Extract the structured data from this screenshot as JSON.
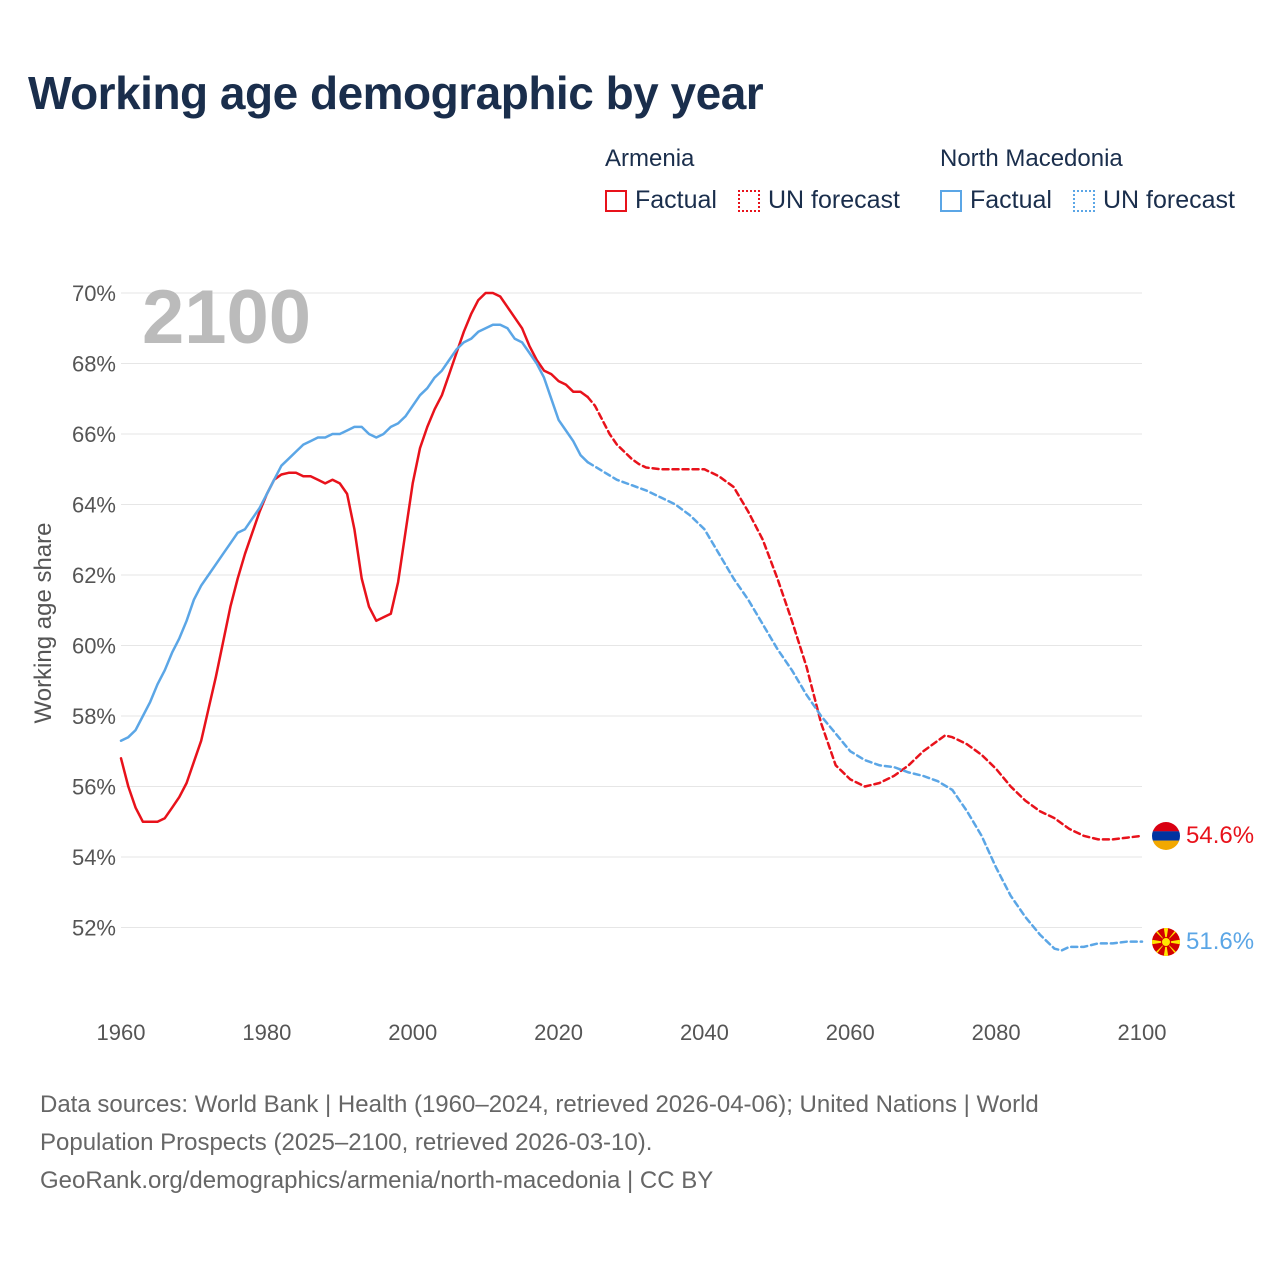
{
  "title": "Working age demographic by year",
  "legend": {
    "groups": [
      {
        "country": "Armenia",
        "factual_label": "Factual",
        "forecast_label": "UN forecast",
        "color": "#e8121b"
      },
      {
        "country": "North Macedonia",
        "factual_label": "Factual",
        "forecast_label": "UN forecast",
        "color": "#5ba6e6"
      }
    ]
  },
  "year_display": "2100",
  "footer": {
    "line1": "Data sources: World Bank | Health (1960–2024, retrieved 2026-04-06); United Nations | World",
    "line2": "Population Prospects (2025–2100, retrieved 2026-03-10).",
    "line3": "GeoRank.org/demographics/armenia/north-macedonia | CC BY"
  },
  "chart_data": {
    "type": "line",
    "title": "Working age demographic by year",
    "xlabel": "",
    "ylabel": "Working age share",
    "xlim": [
      1960,
      2100
    ],
    "ylim": [
      50,
      70
    ],
    "x_ticks": [
      1960,
      1980,
      2000,
      2020,
      2040,
      2060,
      2080,
      2100
    ],
    "y_ticks": [
      {
        "value": 52,
        "label": "52%"
      },
      {
        "value": 54,
        "label": "54%"
      },
      {
        "value": 56,
        "label": "56%"
      },
      {
        "value": 58,
        "label": "58%"
      },
      {
        "value": 60,
        "label": "60%"
      },
      {
        "value": 62,
        "label": "62%"
      },
      {
        "value": 64,
        "label": "64%"
      },
      {
        "value": 66,
        "label": "66%"
      },
      {
        "value": 68,
        "label": "68%"
      },
      {
        "value": 70,
        "label": "70%"
      }
    ],
    "grid": true,
    "factual_end_year": 2024,
    "series": [
      {
        "name": "Armenia",
        "color": "#e8121b",
        "end_label": "54.6%",
        "flag": "armenia-flag",
        "points": [
          [
            1960,
            56.8
          ],
          [
            1961,
            56.0
          ],
          [
            1962,
            55.4
          ],
          [
            1963,
            55.0
          ],
          [
            1964,
            55.0
          ],
          [
            1965,
            55.0
          ],
          [
            1966,
            55.1
          ],
          [
            1967,
            55.4
          ],
          [
            1968,
            55.7
          ],
          [
            1969,
            56.1
          ],
          [
            1970,
            56.7
          ],
          [
            1971,
            57.3
          ],
          [
            1972,
            58.2
          ],
          [
            1973,
            59.1
          ],
          [
            1974,
            60.1
          ],
          [
            1975,
            61.1
          ],
          [
            1976,
            61.9
          ],
          [
            1977,
            62.6
          ],
          [
            1978,
            63.2
          ],
          [
            1979,
            63.8
          ],
          [
            1980,
            64.3
          ],
          [
            1981,
            64.7
          ],
          [
            1982,
            64.85
          ],
          [
            1983,
            64.9
          ],
          [
            1984,
            64.9
          ],
          [
            1985,
            64.8
          ],
          [
            1986,
            64.8
          ],
          [
            1987,
            64.7
          ],
          [
            1988,
            64.6
          ],
          [
            1989,
            64.7
          ],
          [
            1990,
            64.6
          ],
          [
            1991,
            64.3
          ],
          [
            1992,
            63.3
          ],
          [
            1993,
            61.9
          ],
          [
            1994,
            61.1
          ],
          [
            1995,
            60.7
          ],
          [
            1996,
            60.8
          ],
          [
            1997,
            60.9
          ],
          [
            1998,
            61.8
          ],
          [
            1999,
            63.2
          ],
          [
            2000,
            64.6
          ],
          [
            2001,
            65.6
          ],
          [
            2002,
            66.2
          ],
          [
            2003,
            66.7
          ],
          [
            2004,
            67.1
          ],
          [
            2005,
            67.7
          ],
          [
            2006,
            68.3
          ],
          [
            2007,
            68.9
          ],
          [
            2008,
            69.4
          ],
          [
            2009,
            69.8
          ],
          [
            2010,
            70.0
          ],
          [
            2011,
            70.0
          ],
          [
            2012,
            69.9
          ],
          [
            2013,
            69.6
          ],
          [
            2014,
            69.3
          ],
          [
            2015,
            69.0
          ],
          [
            2016,
            68.5
          ],
          [
            2017,
            68.1
          ],
          [
            2018,
            67.8
          ],
          [
            2019,
            67.7
          ],
          [
            2020,
            67.5
          ],
          [
            2021,
            67.4
          ],
          [
            2022,
            67.2
          ],
          [
            2023,
            67.2
          ],
          [
            2024,
            67.05
          ],
          [
            2025,
            66.8
          ],
          [
            2026,
            66.4
          ],
          [
            2027,
            66.0
          ],
          [
            2028,
            65.7
          ],
          [
            2029,
            65.5
          ],
          [
            2030,
            65.3
          ],
          [
            2031,
            65.15
          ],
          [
            2032,
            65.05
          ],
          [
            2034,
            65.0
          ],
          [
            2036,
            65.0
          ],
          [
            2038,
            65.0
          ],
          [
            2040,
            65.0
          ],
          [
            2042,
            64.8
          ],
          [
            2044,
            64.5
          ],
          [
            2046,
            63.8
          ],
          [
            2048,
            63.0
          ],
          [
            2050,
            61.9
          ],
          [
            2052,
            60.7
          ],
          [
            2054,
            59.4
          ],
          [
            2056,
            57.8
          ],
          [
            2058,
            56.6
          ],
          [
            2060,
            56.2
          ],
          [
            2062,
            56.0
          ],
          [
            2064,
            56.1
          ],
          [
            2066,
            56.3
          ],
          [
            2068,
            56.6
          ],
          [
            2070,
            57.0
          ],
          [
            2072,
            57.3
          ],
          [
            2073,
            57.45
          ],
          [
            2074,
            57.4
          ],
          [
            2076,
            57.2
          ],
          [
            2078,
            56.9
          ],
          [
            2080,
            56.5
          ],
          [
            2082,
            56.0
          ],
          [
            2084,
            55.6
          ],
          [
            2086,
            55.3
          ],
          [
            2088,
            55.1
          ],
          [
            2090,
            54.8
          ],
          [
            2092,
            54.6
          ],
          [
            2094,
            54.5
          ],
          [
            2096,
            54.5
          ],
          [
            2098,
            54.55
          ],
          [
            2100,
            54.6
          ]
        ]
      },
      {
        "name": "North Macedonia",
        "color": "#5ba6e6",
        "end_label": "51.6%",
        "flag": "north-macedonia-flag",
        "points": [
          [
            1960,
            57.3
          ],
          [
            1961,
            57.4
          ],
          [
            1962,
            57.6
          ],
          [
            1963,
            58.0
          ],
          [
            1964,
            58.4
          ],
          [
            1965,
            58.9
          ],
          [
            1966,
            59.3
          ],
          [
            1967,
            59.8
          ],
          [
            1968,
            60.2
          ],
          [
            1969,
            60.7
          ],
          [
            1970,
            61.3
          ],
          [
            1971,
            61.7
          ],
          [
            1972,
            62.0
          ],
          [
            1973,
            62.3
          ],
          [
            1974,
            62.6
          ],
          [
            1975,
            62.9
          ],
          [
            1976,
            63.2
          ],
          [
            1977,
            63.3
          ],
          [
            1978,
            63.6
          ],
          [
            1979,
            63.9
          ],
          [
            1980,
            64.3
          ],
          [
            1981,
            64.7
          ],
          [
            1982,
            65.1
          ],
          [
            1983,
            65.3
          ],
          [
            1984,
            65.5
          ],
          [
            1985,
            65.7
          ],
          [
            1986,
            65.8
          ],
          [
            1987,
            65.9
          ],
          [
            1988,
            65.9
          ],
          [
            1989,
            66.0
          ],
          [
            1990,
            66.0
          ],
          [
            1991,
            66.1
          ],
          [
            1992,
            66.2
          ],
          [
            1993,
            66.2
          ],
          [
            1994,
            66.0
          ],
          [
            1995,
            65.9
          ],
          [
            1996,
            66.0
          ],
          [
            1997,
            66.2
          ],
          [
            1998,
            66.3
          ],
          [
            1999,
            66.5
          ],
          [
            2000,
            66.8
          ],
          [
            2001,
            67.1
          ],
          [
            2002,
            67.3
          ],
          [
            2003,
            67.6
          ],
          [
            2004,
            67.8
          ],
          [
            2005,
            68.1
          ],
          [
            2006,
            68.4
          ],
          [
            2007,
            68.6
          ],
          [
            2008,
            68.7
          ],
          [
            2009,
            68.9
          ],
          [
            2010,
            69.0
          ],
          [
            2011,
            69.1
          ],
          [
            2012,
            69.1
          ],
          [
            2013,
            69.0
          ],
          [
            2014,
            68.7
          ],
          [
            2015,
            68.6
          ],
          [
            2016,
            68.3
          ],
          [
            2017,
            68.0
          ],
          [
            2018,
            67.6
          ],
          [
            2019,
            67.0
          ],
          [
            2020,
            66.4
          ],
          [
            2021,
            66.1
          ],
          [
            2022,
            65.8
          ],
          [
            2023,
            65.4
          ],
          [
            2024,
            65.2
          ],
          [
            2026,
            64.95
          ],
          [
            2028,
            64.7
          ],
          [
            2030,
            64.55
          ],
          [
            2032,
            64.4
          ],
          [
            2034,
            64.2
          ],
          [
            2036,
            64.0
          ],
          [
            2038,
            63.7
          ],
          [
            2040,
            63.3
          ],
          [
            2042,
            62.6
          ],
          [
            2044,
            61.9
          ],
          [
            2046,
            61.3
          ],
          [
            2048,
            60.6
          ],
          [
            2050,
            59.9
          ],
          [
            2052,
            59.3
          ],
          [
            2054,
            58.6
          ],
          [
            2056,
            58.0
          ],
          [
            2058,
            57.5
          ],
          [
            2060,
            57.0
          ],
          [
            2062,
            56.75
          ],
          [
            2064,
            56.6
          ],
          [
            2066,
            56.55
          ],
          [
            2068,
            56.4
          ],
          [
            2070,
            56.3
          ],
          [
            2072,
            56.15
          ],
          [
            2074,
            55.9
          ],
          [
            2076,
            55.3
          ],
          [
            2078,
            54.6
          ],
          [
            2080,
            53.7
          ],
          [
            2082,
            52.9
          ],
          [
            2084,
            52.3
          ],
          [
            2086,
            51.8
          ],
          [
            2088,
            51.4
          ],
          [
            2089,
            51.35
          ],
          [
            2090,
            51.45
          ],
          [
            2092,
            51.45
          ],
          [
            2094,
            51.55
          ],
          [
            2096,
            51.55
          ],
          [
            2098,
            51.6
          ],
          [
            2100,
            51.6
          ]
        ]
      }
    ]
  }
}
